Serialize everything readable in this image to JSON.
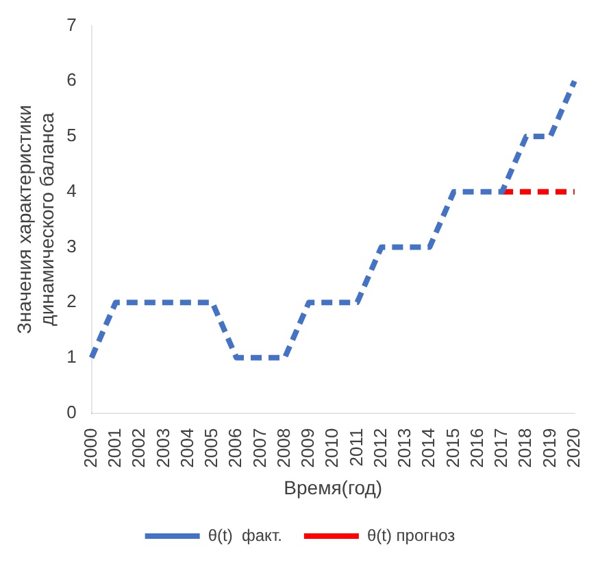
{
  "chart_data": {
    "type": "line",
    "xlabel": "Время(год)",
    "ylabel": "Значения характеристики\nдинамического баланса",
    "categories": [
      "2000",
      "2001",
      "2002",
      "2003",
      "2004",
      "2005",
      "2006",
      "2007",
      "2008",
      "2009",
      "2010",
      "2011",
      "2012",
      "2013",
      "2014",
      "2015",
      "2016",
      "2017",
      "2018",
      "2019",
      "2020"
    ],
    "series": [
      {
        "name": "θ(t)  факт.",
        "color": "#4472c4",
        "values": [
          1,
          2,
          2,
          2,
          2,
          2,
          1,
          1,
          1,
          2,
          2,
          2,
          3,
          3,
          3,
          4,
          4,
          4,
          5,
          5,
          6
        ]
      },
      {
        "name": "θ(t) прогноз",
        "color": "#ff0000",
        "values": [
          null,
          null,
          null,
          null,
          null,
          null,
          null,
          null,
          null,
          null,
          null,
          null,
          null,
          null,
          null,
          null,
          null,
          4,
          4,
          4,
          4
        ]
      }
    ],
    "ylim": [
      0,
      7
    ],
    "yticks": [
      0,
      1,
      2,
      3,
      4,
      5,
      6,
      7
    ],
    "grid": false,
    "legend": "bottom",
    "marker": "none",
    "line_style": "dashed"
  }
}
